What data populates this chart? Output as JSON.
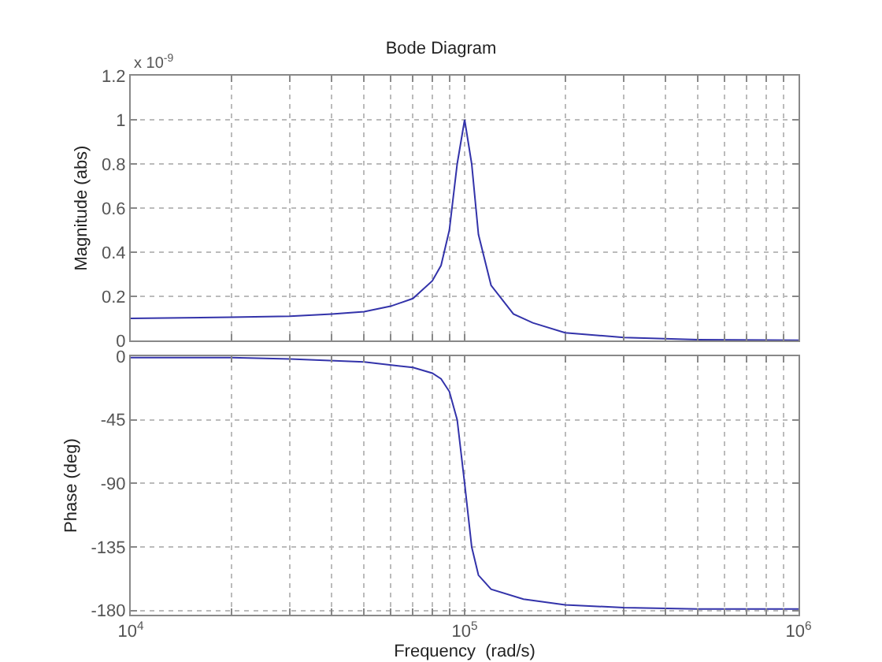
{
  "chart_data": [
    {
      "type": "line",
      "title": "Bode Diagram",
      "ylabel": "Magnitude (abs)",
      "annotations": [
        "x 10$^{-9}$"
      ],
      "log": "x",
      "grid": true,
      "tick_labels": "y",
      "x": [
        10000,
        20000,
        30000,
        40000,
        50000,
        60000,
        70000,
        80000,
        85000,
        90000,
        95000,
        100000,
        105000,
        110000,
        120000,
        140000,
        160000,
        200000,
        300000,
        500000,
        1000000
      ],
      "series": [
        {
          "color": "#3333aa",
          "values": [
            0.1,
            0.105,
            0.11,
            0.12,
            0.13,
            0.155,
            0.19,
            0.27,
            0.34,
            0.5,
            0.8,
            1.0,
            0.8,
            0.48,
            0.25,
            0.12,
            0.08,
            0.035,
            0.013,
            0.004,
            0.001
          ]
        }
      ],
      "xlim": [
        10000,
        1000000
      ],
      "ylim": [
        0,
        1.2
      ],
      "yticks": [
        0,
        0.2,
        0.4,
        0.6,
        0.8,
        1,
        1.2
      ],
      "xticks": [
        {
          "value": 10000,
          "label": null
        },
        {
          "value": 20000,
          "label": null
        },
        {
          "value": 30000,
          "label": null
        },
        {
          "value": 40000,
          "label": null
        },
        {
          "value": 50000,
          "label": null
        },
        {
          "value": 60000,
          "label": null
        },
        {
          "value": 70000,
          "label": null
        },
        {
          "value": 80000,
          "label": null
        },
        {
          "value": 90000,
          "label": null
        },
        {
          "value": 100000,
          "label": null
        },
        {
          "value": 200000,
          "label": null
        },
        {
          "value": 300000,
          "label": null
        },
        {
          "value": 400000,
          "label": null
        },
        {
          "value": 500000,
          "label": null
        },
        {
          "value": 600000,
          "label": null
        },
        {
          "value": 700000,
          "label": null
        },
        {
          "value": 800000,
          "label": null
        },
        {
          "value": 900000,
          "label": null
        },
        {
          "value": 1000000,
          "label": null
        }
      ]
    },
    {
      "type": "line",
      "xlabel": "Frequency  (rad/s)",
      "ylabel": "Phase (deg)",
      "log": "x",
      "grid": true,
      "x": [
        10000,
        20000,
        30000,
        50000,
        70000,
        80000,
        85000,
        90000,
        95000,
        100000,
        105000,
        110000,
        120000,
        150000,
        200000,
        300000,
        500000,
        1000000
      ],
      "series": [
        {
          "color": "#3333aa",
          "values": [
            -1,
            -1,
            -2,
            -4,
            -8,
            -12,
            -16,
            -25,
            -45,
            -90,
            -135,
            -155,
            -165,
            -172,
            -176,
            -178,
            -179,
            -179
          ]
        }
      ],
      "xlim": [
        10000,
        1000000
      ],
      "ylim": [
        -183,
        0
      ],
      "yticks": [
        -180,
        -135,
        -90,
        -45,
        0
      ],
      "xticks": [
        {
          "value": 10000,
          "label": "10$^{4}$"
        },
        {
          "value": 20000,
          "label": null
        },
        {
          "value": 30000,
          "label": null
        },
        {
          "value": 40000,
          "label": null
        },
        {
          "value": 50000,
          "label": null
        },
        {
          "value": 60000,
          "label": null
        },
        {
          "value": 70000,
          "label": null
        },
        {
          "value": 80000,
          "label": null
        },
        {
          "value": 90000,
          "label": null
        },
        {
          "value": 100000,
          "label": "10$^{5}$"
        },
        {
          "value": 200000,
          "label": null
        },
        {
          "value": 300000,
          "label": null
        },
        {
          "value": 400000,
          "label": null
        },
        {
          "value": 500000,
          "label": null
        },
        {
          "value": 600000,
          "label": null
        },
        {
          "value": 700000,
          "label": null
        },
        {
          "value": 800000,
          "label": null
        },
        {
          "value": 900000,
          "label": null
        },
        {
          "value": 1000000,
          "label": "10$^{6}$"
        }
      ]
    }
  ]
}
